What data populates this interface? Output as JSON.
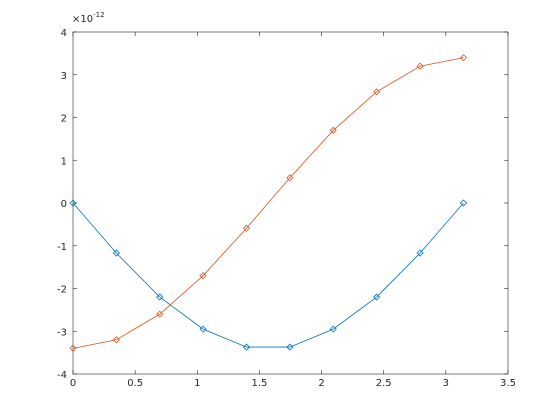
{
  "chart_data": {
    "type": "line",
    "y_multiplier": {
      "base": "×10",
      "exponent": "-12"
    },
    "x": [
      0,
      0.349,
      0.698,
      1.047,
      1.396,
      1.745,
      2.094,
      2.443,
      2.793,
      3.142
    ],
    "series": [
      {
        "color": "#0072bd",
        "values": [
          0,
          -1.17,
          -2.2,
          -2.95,
          -3.37,
          -3.37,
          -2.95,
          -2.2,
          -1.17,
          0
        ]
      },
      {
        "color": "#d95319",
        "values": [
          -3.4,
          -3.2,
          -2.6,
          -1.7,
          -0.59,
          0.59,
          1.7,
          2.6,
          3.2,
          3.4
        ]
      }
    ],
    "marker": "diamond",
    "xlim": [
      0,
      3.5
    ],
    "xticks": [
      0,
      0.5,
      1,
      1.5,
      2,
      2.5,
      3,
      3.5
    ],
    "ylim": [
      -4,
      4
    ],
    "yticks": [
      -4,
      -3,
      -2,
      -1,
      0,
      1,
      2,
      3,
      4
    ],
    "grid": false
  }
}
